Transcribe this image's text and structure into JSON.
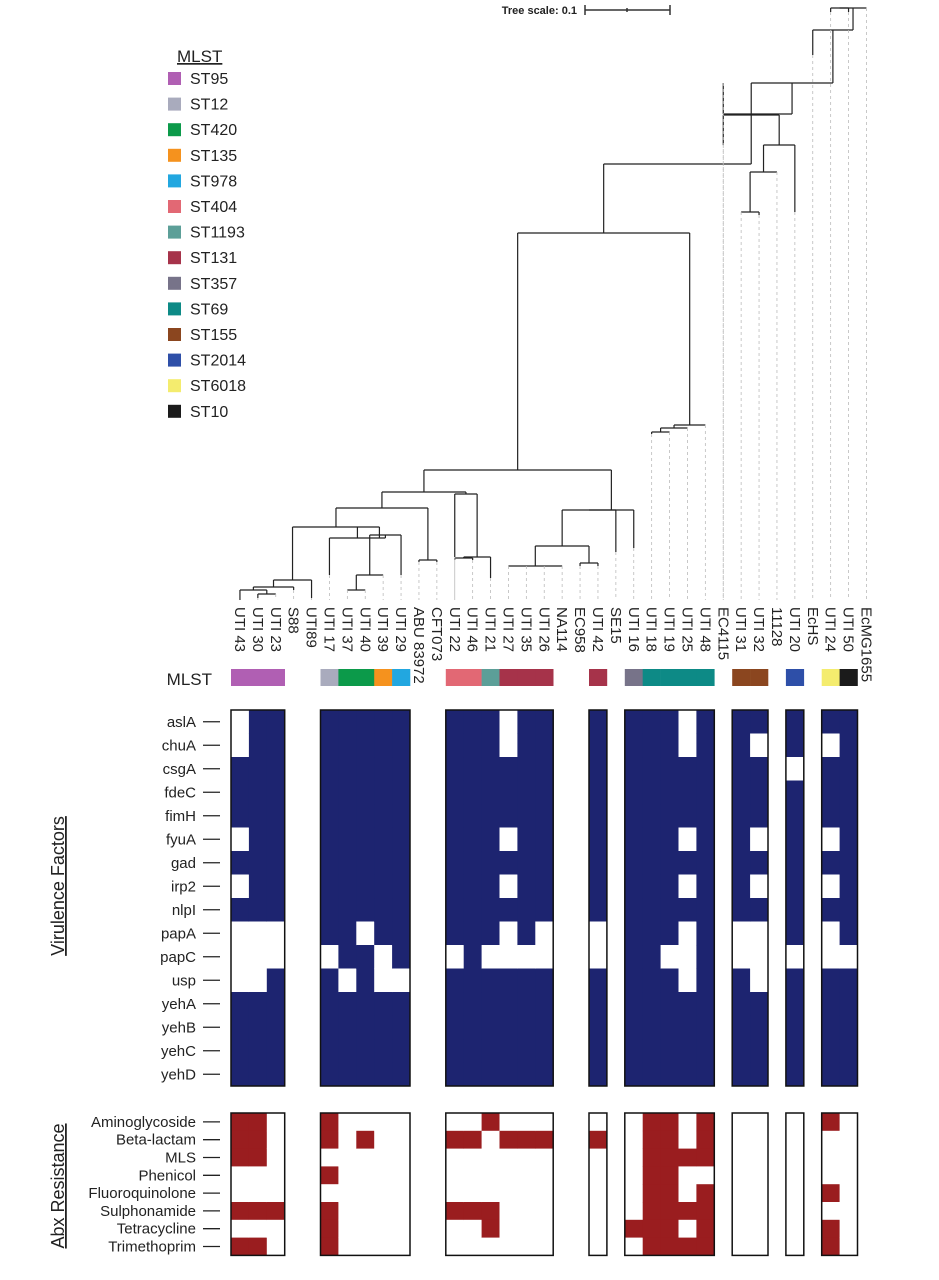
{
  "tree_scale_label": "Tree scale: 0.1",
  "mlst_legend": {
    "title": "MLST",
    "items": [
      {
        "label": "ST95",
        "color": "#b05fb3"
      },
      {
        "label": "ST12",
        "color": "#a9abbd"
      },
      {
        "label": "ST420",
        "color": "#0c9a4a"
      },
      {
        "label": "ST135",
        "color": "#f5921e"
      },
      {
        "label": "ST978",
        "color": "#22a7e0"
      },
      {
        "label": "ST404",
        "color": "#e26874"
      },
      {
        "label": "ST1193",
        "color": "#5c9f98"
      },
      {
        "label": "ST131",
        "color": "#a6334a"
      },
      {
        "label": "ST357",
        "color": "#777389"
      },
      {
        "label": "ST69",
        "color": "#0d8a86"
      },
      {
        "label": "ST155",
        "color": "#8b461f"
      },
      {
        "label": "ST2014",
        "color": "#2e4fa8"
      },
      {
        "label": "ST6018",
        "color": "#f4ec6e"
      },
      {
        "label": "ST10",
        "color": "#1b1b1b"
      }
    ]
  },
  "strains": [
    {
      "label": "UTI 43",
      "ref": false
    },
    {
      "label": "UTI 30",
      "ref": false
    },
    {
      "label": "UTI 23",
      "ref": false
    },
    {
      "label": "S88",
      "ref": true
    },
    {
      "label": "UTI89",
      "ref": true
    },
    {
      "label": "UTI 17",
      "ref": false
    },
    {
      "label": "UTI 37",
      "ref": false
    },
    {
      "label": "UTI 40",
      "ref": false
    },
    {
      "label": "UTI 39",
      "ref": false
    },
    {
      "label": "UTI 29",
      "ref": false
    },
    {
      "label": "ABU 83972",
      "ref": true
    },
    {
      "label": "CFT073",
      "ref": true
    },
    {
      "label": "UTI 22",
      "ref": false
    },
    {
      "label": "UTI 46",
      "ref": false
    },
    {
      "label": "UTI 21",
      "ref": false
    },
    {
      "label": "UTI 27",
      "ref": false
    },
    {
      "label": "UTI 35",
      "ref": false
    },
    {
      "label": "UTI 26",
      "ref": false
    },
    {
      "label": "NA114",
      "ref": true
    },
    {
      "label": "EC958",
      "ref": true
    },
    {
      "label": "UTI 42",
      "ref": false
    },
    {
      "label": "SE15",
      "ref": true
    },
    {
      "label": "UTI 16",
      "ref": false
    },
    {
      "label": "UTI 18",
      "ref": false
    },
    {
      "label": "UTI 19",
      "ref": false
    },
    {
      "label": "UTI 25",
      "ref": false
    },
    {
      "label": "UTI 48",
      "ref": false
    },
    {
      "label": "EC4115",
      "ref": true
    },
    {
      "label": "UTI 31",
      "ref": false
    },
    {
      "label": "UTI 32",
      "ref": false
    },
    {
      "label": "11128",
      "ref": true
    },
    {
      "label": "UTI 20",
      "ref": false
    },
    {
      "label": "EcHS",
      "ref": true
    },
    {
      "label": "UTI 24",
      "ref": false
    },
    {
      "label": "UTI 50",
      "ref": false
    },
    {
      "label": "EcMG1655",
      "ref": true
    }
  ],
  "mlst_row": {
    "label": "MLST",
    "cells": [
      {
        "color": "#b05fb3"
      },
      {
        "color": "#b05fb3"
      },
      {
        "color": "#b05fb3"
      },
      null,
      null,
      {
        "color": "#a9abbd"
      },
      {
        "color": "#0c9a4a"
      },
      {
        "color": "#0c9a4a"
      },
      {
        "color": "#f5921e"
      },
      {
        "color": "#22a7e0"
      },
      null,
      null,
      {
        "color": "#e26874"
      },
      {
        "color": "#e26874"
      },
      {
        "color": "#5c9f98"
      },
      {
        "color": "#a6334a"
      },
      {
        "color": "#a6334a"
      },
      {
        "color": "#a6334a"
      },
      null,
      null,
      {
        "color": "#a6334a"
      },
      null,
      {
        "color": "#777389"
      },
      {
        "color": "#0d8a86"
      },
      {
        "color": "#0d8a86"
      },
      {
        "color": "#0d8a86"
      },
      {
        "color": "#0d8a86"
      },
      null,
      {
        "color": "#8b461f"
      },
      {
        "color": "#8b461f"
      },
      null,
      {
        "color": "#2e4fa8"
      },
      null,
      {
        "color": "#f4ec6e"
      },
      {
        "color": "#1b1b1b"
      },
      null
    ]
  },
  "virulence": {
    "axis_title": "Virulence Factors",
    "genes": [
      "aslA",
      "chuA",
      "csgA",
      "fdeC",
      "fimH",
      "fyuA",
      "gad",
      "irp2",
      "nlpI",
      "papA",
      "papC",
      "usp",
      "yehA",
      "yehB",
      "yehC",
      "yehD"
    ],
    "strains": [
      "UTI 43",
      "UTI 30",
      "UTI 23",
      "UTI 17",
      "UTI 37",
      "UTI 40",
      "UTI 39",
      "UTI 29",
      "UTI 22",
      "UTI 46",
      "UTI 21",
      "UTI 27",
      "UTI 35",
      "UTI 26",
      "UTI 42",
      "UTI 16",
      "UTI 18",
      "UTI 19",
      "UTI 25",
      "UTI 48",
      "UTI 31",
      "UTI 32",
      "UTI 20",
      "UTI 24",
      "UTI 50"
    ],
    "present_color": "#1d2470",
    "absent_color": "#ffffff",
    "matrix": [
      [
        0,
        1,
        1,
        1,
        1,
        1,
        1,
        1,
        1,
        1,
        1,
        0,
        1,
        1,
        1,
        1,
        1,
        1,
        0,
        1,
        1,
        1,
        1,
        1,
        1
      ],
      [
        0,
        1,
        1,
        1,
        1,
        1,
        1,
        1,
        1,
        1,
        1,
        0,
        1,
        1,
        1,
        1,
        1,
        1,
        0,
        1,
        1,
        0,
        1,
        0,
        1
      ],
      [
        1,
        1,
        1,
        1,
        1,
        1,
        1,
        1,
        1,
        1,
        1,
        1,
        1,
        1,
        1,
        1,
        1,
        1,
        1,
        1,
        1,
        1,
        0,
        1,
        1
      ],
      [
        1,
        1,
        1,
        1,
        1,
        1,
        1,
        1,
        1,
        1,
        1,
        1,
        1,
        1,
        1,
        1,
        1,
        1,
        1,
        1,
        1,
        1,
        1,
        1,
        1
      ],
      [
        1,
        1,
        1,
        1,
        1,
        1,
        1,
        1,
        1,
        1,
        1,
        1,
        1,
        1,
        1,
        1,
        1,
        1,
        1,
        1,
        1,
        1,
        1,
        1,
        1
      ],
      [
        0,
        1,
        1,
        1,
        1,
        1,
        1,
        1,
        1,
        1,
        1,
        0,
        1,
        1,
        1,
        1,
        1,
        1,
        0,
        1,
        1,
        0,
        1,
        0,
        1
      ],
      [
        1,
        1,
        1,
        1,
        1,
        1,
        1,
        1,
        1,
        1,
        1,
        1,
        1,
        1,
        1,
        1,
        1,
        1,
        1,
        1,
        1,
        1,
        1,
        1,
        1
      ],
      [
        0,
        1,
        1,
        1,
        1,
        1,
        1,
        1,
        1,
        1,
        1,
        0,
        1,
        1,
        1,
        1,
        1,
        1,
        0,
        1,
        1,
        0,
        1,
        0,
        1
      ],
      [
        1,
        1,
        1,
        1,
        1,
        1,
        1,
        1,
        1,
        1,
        1,
        1,
        1,
        1,
        1,
        1,
        1,
        1,
        1,
        1,
        1,
        1,
        1,
        1,
        1
      ],
      [
        0,
        0,
        0,
        1,
        1,
        0,
        1,
        1,
        1,
        1,
        1,
        0,
        1,
        0,
        0,
        1,
        1,
        1,
        0,
        1,
        0,
        0,
        1,
        0,
        1
      ],
      [
        0,
        0,
        0,
        0,
        1,
        1,
        0,
        1,
        0,
        1,
        0,
        0,
        0,
        0,
        0,
        1,
        1,
        0,
        0,
        1,
        0,
        0,
        0,
        0,
        0
      ],
      [
        0,
        0,
        1,
        1,
        0,
        1,
        0,
        0,
        1,
        1,
        1,
        1,
        1,
        1,
        1,
        1,
        1,
        1,
        0,
        1,
        1,
        0,
        1,
        1,
        1
      ],
      [
        1,
        1,
        1,
        1,
        1,
        1,
        1,
        1,
        1,
        1,
        1,
        1,
        1,
        1,
        1,
        1,
        1,
        1,
        1,
        1,
        1,
        1,
        1,
        1,
        1
      ],
      [
        1,
        1,
        1,
        1,
        1,
        1,
        1,
        1,
        1,
        1,
        1,
        1,
        1,
        1,
        1,
        1,
        1,
        1,
        1,
        1,
        1,
        1,
        1,
        1,
        1
      ],
      [
        1,
        1,
        1,
        1,
        1,
        1,
        1,
        1,
        1,
        1,
        1,
        1,
        1,
        1,
        1,
        1,
        1,
        1,
        1,
        1,
        1,
        1,
        1,
        1,
        1
      ],
      [
        1,
        1,
        1,
        1,
        1,
        1,
        1,
        1,
        1,
        1,
        1,
        1,
        1,
        1,
        1,
        1,
        1,
        1,
        1,
        1,
        1,
        1,
        1,
        1,
        1
      ]
    ]
  },
  "resistance": {
    "axis_title": "Abx Resistance",
    "classes": [
      "Aminoglycoside",
      "Beta-lactam",
      "MLS",
      "Phenicol",
      "Fluoroquinolone",
      "Sulphonamide",
      "Tetracycline",
      "Trimethoprim"
    ],
    "present_color": "#9a1d1f",
    "absent_color": "#ffffff",
    "matrix": [
      [
        1,
        1,
        0,
        1,
        0,
        0,
        0,
        0,
        0,
        0,
        1,
        0,
        0,
        0,
        0,
        0,
        1,
        1,
        0,
        1,
        0,
        0,
        0,
        1,
        0
      ],
      [
        1,
        1,
        0,
        1,
        0,
        1,
        0,
        0,
        1,
        1,
        0,
        1,
        1,
        1,
        1,
        0,
        1,
        1,
        0,
        1,
        0,
        0,
        0,
        0,
        0
      ],
      [
        1,
        1,
        0,
        0,
        0,
        0,
        0,
        0,
        0,
        0,
        0,
        0,
        0,
        0,
        0,
        0,
        1,
        1,
        1,
        1,
        0,
        0,
        0,
        0,
        0
      ],
      [
        0,
        0,
        0,
        1,
        0,
        0,
        0,
        0,
        0,
        0,
        0,
        0,
        0,
        0,
        0,
        0,
        1,
        1,
        0,
        0,
        0,
        0,
        0,
        0,
        0
      ],
      [
        0,
        0,
        0,
        0,
        0,
        0,
        0,
        0,
        0,
        0,
        0,
        0,
        0,
        0,
        0,
        0,
        1,
        1,
        0,
        1,
        0,
        0,
        0,
        1,
        0
      ],
      [
        1,
        1,
        1,
        1,
        0,
        0,
        0,
        0,
        1,
        1,
        1,
        0,
        0,
        0,
        0,
        0,
        1,
        1,
        1,
        1,
        0,
        0,
        0,
        0,
        0
      ],
      [
        0,
        0,
        0,
        1,
        0,
        0,
        0,
        0,
        0,
        0,
        1,
        0,
        0,
        0,
        0,
        1,
        1,
        1,
        0,
        1,
        0,
        0,
        0,
        1,
        0
      ],
      [
        1,
        1,
        0,
        1,
        0,
        0,
        0,
        0,
        0,
        0,
        0,
        0,
        0,
        0,
        0,
        0,
        1,
        1,
        1,
        1,
        0,
        0,
        0,
        1,
        0
      ]
    ]
  }
}
